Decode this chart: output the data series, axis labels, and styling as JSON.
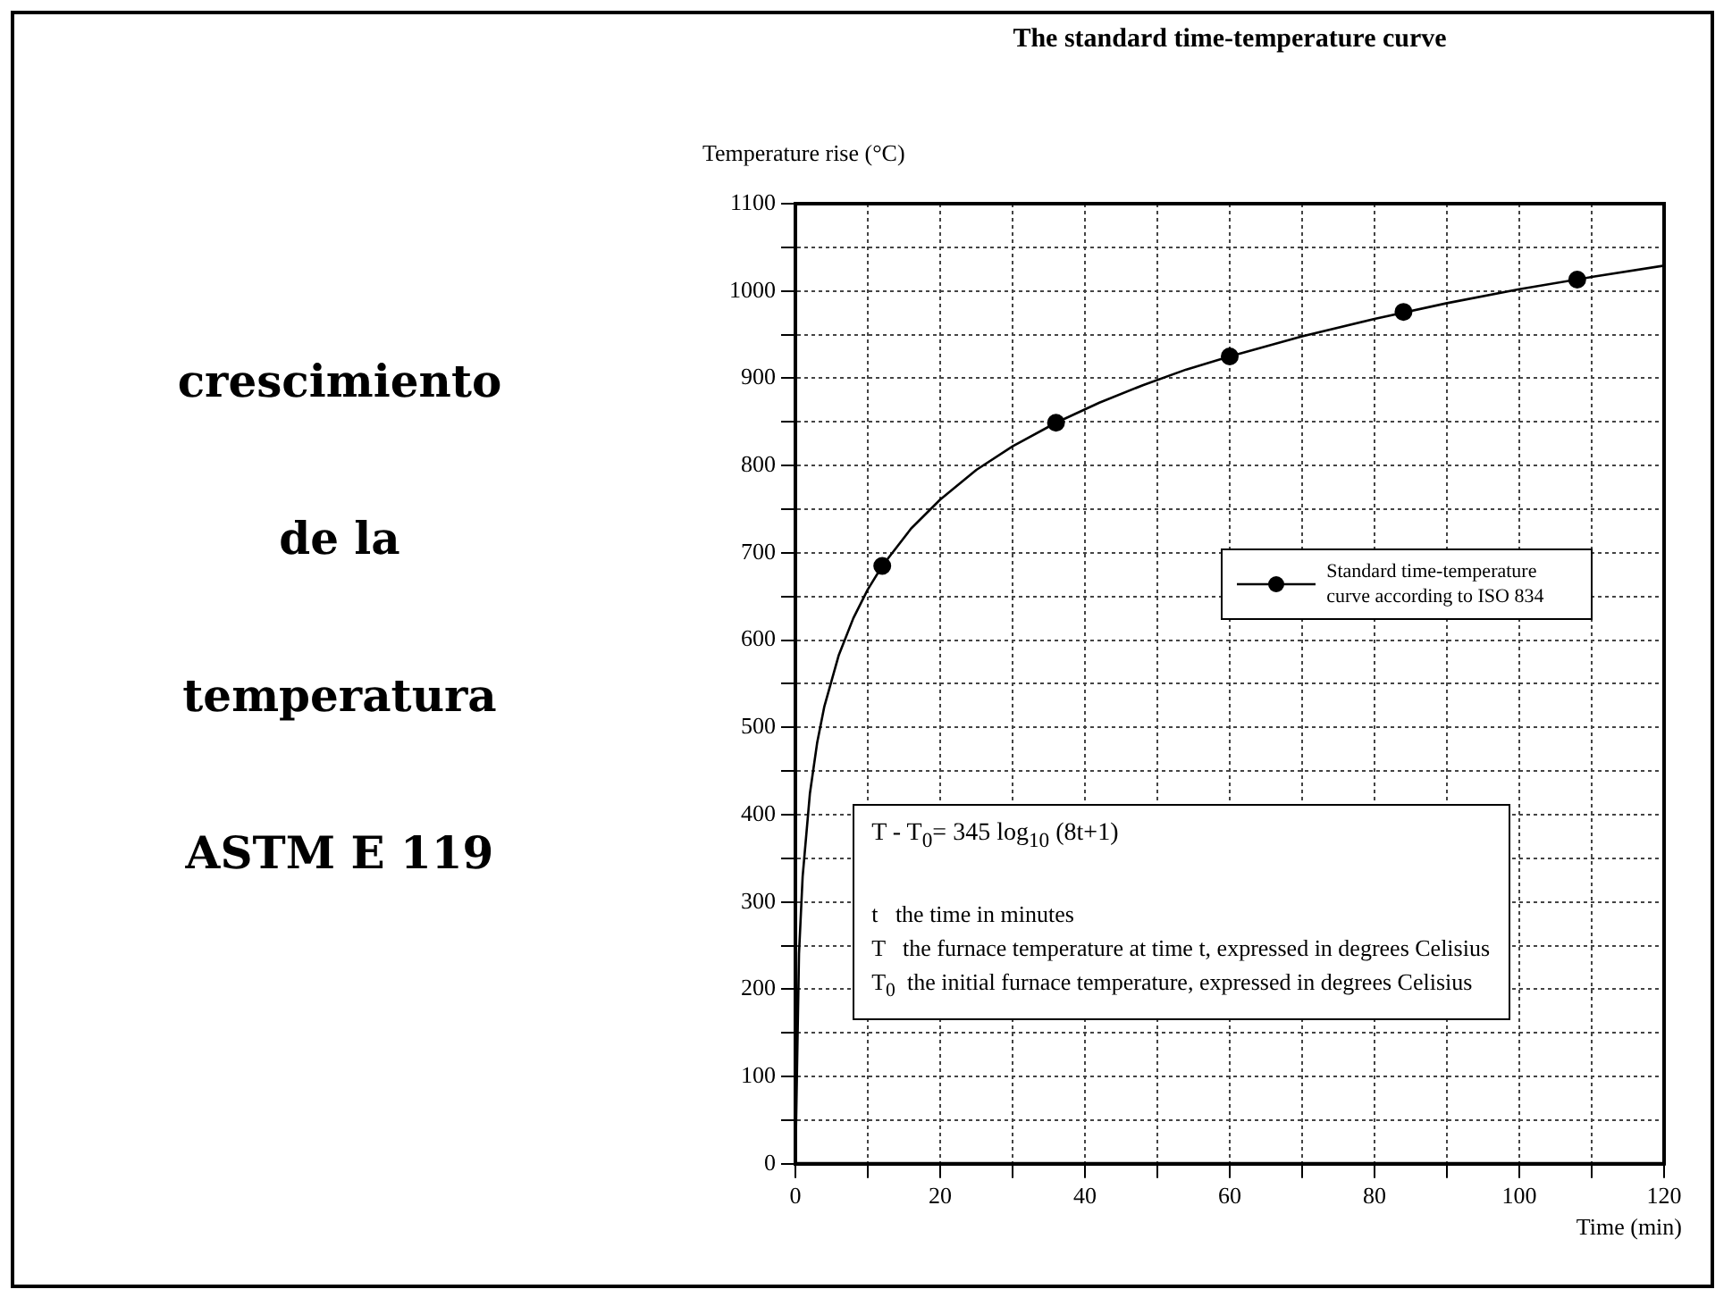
{
  "chart_data": {
    "type": "line",
    "title": "The standard time-temperature curve",
    "subtitle": "crescimiento\nde la\ntemperatura\nASTM E 119",
    "xlabel": "Time (min)",
    "ylabel": "Temperature rise (°C)",
    "xlim": [
      0,
      120
    ],
    "xticks": [
      0,
      {
        "value": 10,
        "label": null
      },
      20,
      {
        "value": 30,
        "label": null
      },
      40,
      {
        "value": 50,
        "label": null
      },
      60,
      {
        "value": 70,
        "label": null
      },
      80,
      {
        "value": 90,
        "label": null
      },
      100,
      {
        "value": 110,
        "label": null
      },
      120
    ],
    "ylim": [
      0,
      1100
    ],
    "yticks": [
      0,
      {
        "value": 50,
        "label": null
      },
      100,
      {
        "value": 150,
        "label": null
      },
      200,
      {
        "value": 250,
        "label": null
      },
      300,
      {
        "value": 350,
        "label": null
      },
      400,
      {
        "value": 450,
        "label": null
      },
      500,
      {
        "value": 550,
        "label": null
      },
      600,
      {
        "value": 650,
        "label": null
      },
      700,
      {
        "value": 750,
        "label": null
      },
      800,
      {
        "value": 850,
        "label": null
      },
      900,
      {
        "value": 950,
        "label": null
      },
      1000,
      {
        "value": 1050,
        "label": null
      },
      1100
    ],
    "grid": true,
    "legend": "right",
    "line_style": "solid",
    "series": [
      {
        "color": "#000000",
        "marker": "none",
        "x": [
          0,
          0.5,
          1,
          2,
          3,
          4,
          6,
          8,
          10,
          12,
          16,
          20,
          25,
          30,
          36,
          42,
          48,
          54,
          60,
          70,
          80,
          90,
          100,
          110,
          120
        ],
        "values": [
          0,
          241,
          329,
          424,
          482,
          524,
          583,
          625,
          658,
          685,
          728,
          761,
          795,
          822,
          849,
          872,
          892,
          910,
          925,
          948,
          968,
          986,
          1002,
          1016,
          1029
        ]
      },
      {
        "type": "scatter",
        "name": "Standard time-temperature curve according to ISO 834",
        "color": "#000000",
        "marker": "circle",
        "x": [
          12,
          36,
          60,
          84,
          108
        ],
        "values": [
          685,
          849,
          925,
          976,
          1013
        ]
      }
    ],
    "annotations": [
      "T - T$_{0}$= 345 log$_{10}$ (8t+1)",
      "t   the time in minutes",
      "T   the furnace temperature at time t, expressed in degrees Celisius",
      "T$_{0}$  the initial furnace temperature, expressed in degrees Celisius"
    ]
  }
}
